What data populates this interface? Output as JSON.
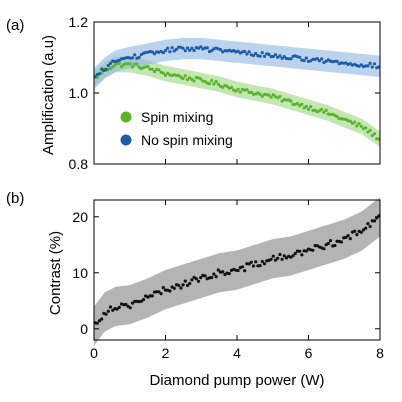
{
  "chart_data": [
    {
      "panel_label": "(a)",
      "type": "scatter",
      "xlabel": "",
      "ylabel": "Amplification (a.u)",
      "xlim": [
        0,
        8
      ],
      "ylim": [
        0.8,
        1.2
      ],
      "xticks": [
        0,
        2,
        4,
        6,
        8
      ],
      "yticks": [
        0.8,
        1.0,
        1.2
      ],
      "ytick_labels": [
        "0.8",
        "1.0",
        "1.2"
      ],
      "xtick_labels_shown": false,
      "legend": "lower-left",
      "series": [
        {
          "name": "Spin mixing",
          "color": "#5ab52c",
          "band_color": "#9cd67f",
          "band_halfwidth": 0.022,
          "anchors_x": [
            0,
            0.3,
            0.6,
            1,
            1.5,
            2,
            2.5,
            3,
            3.5,
            4,
            4.5,
            5,
            5.5,
            6,
            6.5,
            7,
            7.5,
            8
          ],
          "anchors_y": [
            1.04,
            1.065,
            1.08,
            1.08,
            1.07,
            1.055,
            1.045,
            1.035,
            1.025,
            1.01,
            1.0,
            0.99,
            0.975,
            0.96,
            0.945,
            0.925,
            0.905,
            0.87
          ],
          "points": 130,
          "noise": 0.006
        },
        {
          "name": "No spin mixing",
          "color": "#1f5ca8",
          "band_color": "#8fb6e2",
          "band_halfwidth": 0.03,
          "anchors_x": [
            0,
            0.3,
            0.6,
            1,
            1.5,
            2,
            2.5,
            3,
            3.5,
            4,
            4.5,
            5,
            5.5,
            6,
            6.5,
            7,
            7.5,
            8
          ],
          "anchors_y": [
            1.04,
            1.07,
            1.09,
            1.1,
            1.11,
            1.12,
            1.125,
            1.125,
            1.12,
            1.115,
            1.11,
            1.105,
            1.1,
            1.095,
            1.09,
            1.085,
            1.08,
            1.075
          ],
          "points": 130,
          "noise": 0.006
        }
      ]
    },
    {
      "panel_label": "(b)",
      "type": "scatter",
      "xlabel": "Diamond pump power (W)",
      "ylabel": "Contrast (%)",
      "xlim": [
        0,
        8
      ],
      "ylim": [
        -2,
        23
      ],
      "xticks": [
        0,
        2,
        4,
        6,
        8
      ],
      "xtick_labels": [
        "0",
        "2",
        "4",
        "6",
        "8"
      ],
      "yticks": [
        0,
        10,
        20
      ],
      "ytick_labels": [
        "0",
        "10",
        "20"
      ],
      "series": [
        {
          "name": "",
          "color": "#111111",
          "band_color": "#b4b4b4",
          "band_halfwidth": 3.5,
          "anchors_x": [
            0,
            0.3,
            0.6,
            1,
            1.5,
            2,
            2.5,
            3,
            3.5,
            4,
            4.5,
            5,
            5.5,
            6,
            6.5,
            7,
            7.5,
            8
          ],
          "anchors_y": [
            0.5,
            3,
            4,
            4.3,
            5.5,
            7,
            8,
            9,
            10,
            10.5,
            11.5,
            12.5,
            13,
            14,
            15,
            16,
            17.5,
            20
          ],
          "points": 130,
          "noise": 0.6
        }
      ]
    }
  ]
}
